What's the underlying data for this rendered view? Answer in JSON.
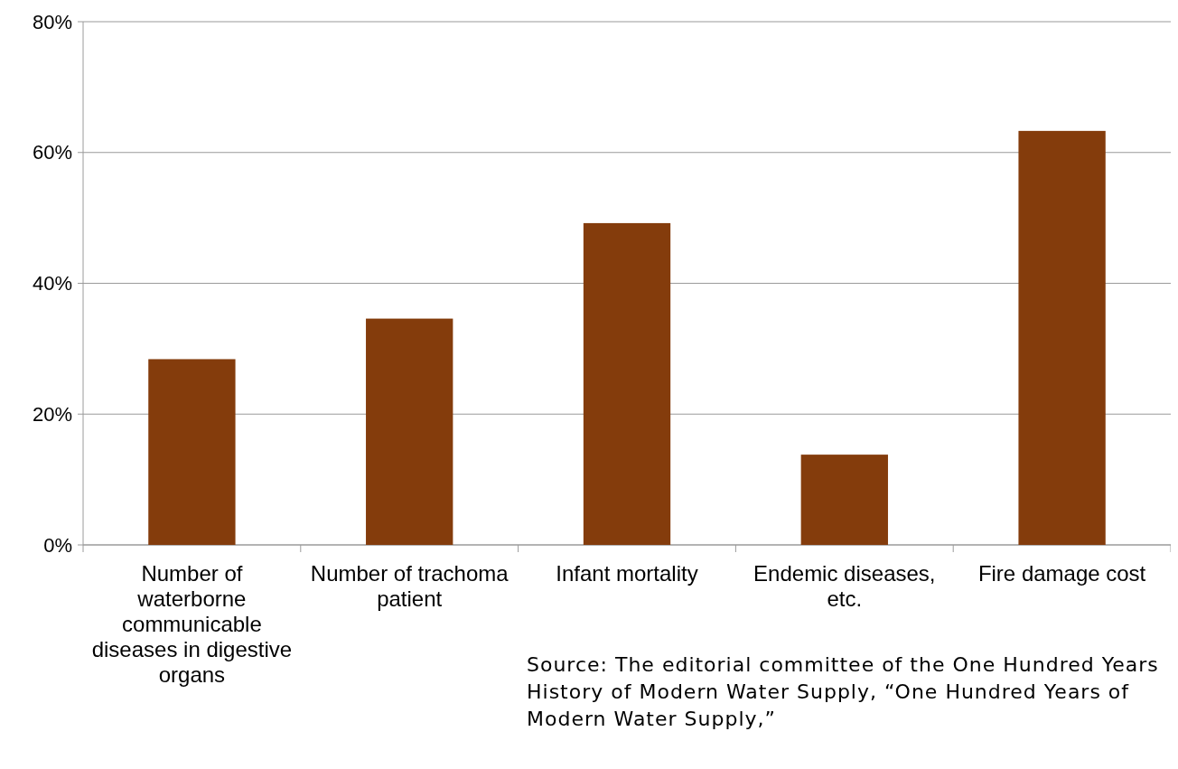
{
  "chart_data": {
    "type": "bar",
    "categories": [
      "Number of waterborne communicable diseases in digestive organs",
      "Number of trachoma patient",
      "Infant mortality",
      "Endemic diseases, etc.",
      "Fire damage cost"
    ],
    "values": [
      28.4,
      34.6,
      49.2,
      13.8,
      63.3
    ],
    "color": "#843c0c",
    "ylim": [
      0,
      80
    ],
    "yticks": [
      {
        "value": 0,
        "label": "0%"
      },
      {
        "value": 20,
        "label": "20%"
      },
      {
        "value": 40,
        "label": "40%"
      },
      {
        "value": 60,
        "label": "60%"
      },
      {
        "value": 80,
        "label": "80%"
      }
    ],
    "grid": "y",
    "annotations": [
      "Source: The editorial committee of the One Hundred Years History of Modern Water Supply, “One Hundred Years of Modern Water Supply,”"
    ]
  }
}
